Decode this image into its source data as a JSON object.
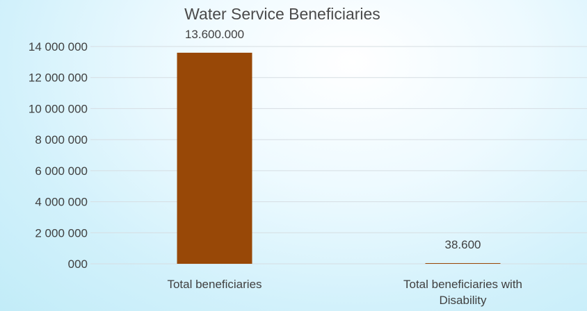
{
  "colors": {
    "bar": "#984807",
    "text": "#404040"
  },
  "chart_data": {
    "type": "bar",
    "title": "Water Service Beneficiaries",
    "xlabel": "",
    "ylabel": "",
    "categories": [
      "Total beneficiaries",
      "Total beneficiaries with Disability"
    ],
    "category_label_lines": [
      [
        "Total beneficiaries"
      ],
      [
        "Total beneficiaries with",
        "Disability"
      ]
    ],
    "values": [
      13600000,
      38600
    ],
    "data_labels": [
      "13.600.000",
      "38.600"
    ],
    "ylim": [
      0,
      14000000
    ],
    "yticks": [
      0,
      2000000,
      4000000,
      6000000,
      8000000,
      10000000,
      12000000,
      14000000
    ],
    "ytick_labels": [
      "000",
      "2 000 000",
      "4 000 000",
      "6 000 000",
      "8 000 000",
      "10 000 000",
      "12 000 000",
      "14 000 000"
    ],
    "grid": true,
    "legend": "none"
  }
}
